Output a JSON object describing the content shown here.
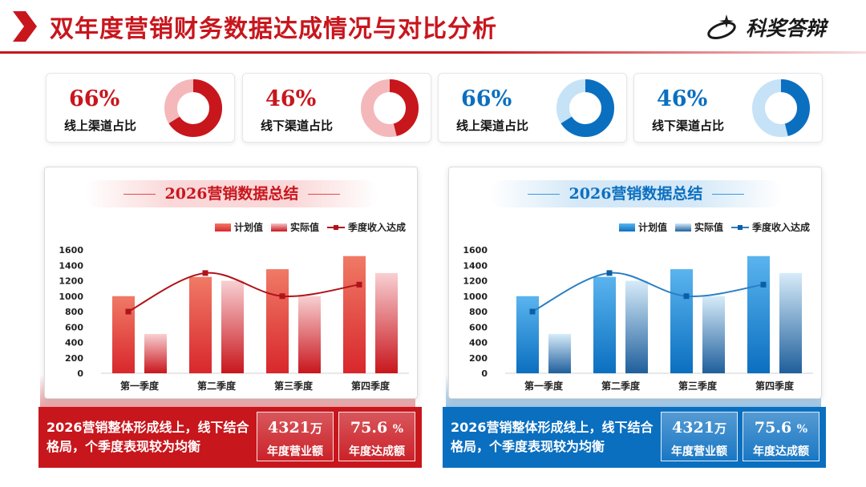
{
  "header": {
    "title": "双年度营销财务数据达成情况与对比分析",
    "logo_text": "科奖答辩",
    "accent_color": "#c8161d"
  },
  "kpis": [
    {
      "value": "66%",
      "label": "线上渠道占比",
      "percent": 66,
      "theme": "red"
    },
    {
      "value": "46%",
      "label": "线下渠道占比",
      "percent": 46,
      "theme": "red"
    },
    {
      "value": "66%",
      "label": "线上渠道占比",
      "percent": 66,
      "theme": "blue"
    },
    {
      "value": "46%",
      "label": "线下渠道占比",
      "percent": 46,
      "theme": "blue"
    }
  ],
  "panels": [
    {
      "title": "2026营销数据总结",
      "theme": "red",
      "summary": "2026营销整体形成线上，线下结合格局，个季度表现较为均衡",
      "stat1_value": "4321",
      "stat1_unit": "万",
      "stat1_label": "年度营业额",
      "stat2_value": "75.6",
      "stat2_unit": "%",
      "stat2_label": "年度达成额"
    },
    {
      "title": "2026营销数据总结",
      "theme": "blue",
      "summary": "2026营销整体形成线上，线下结合格局，个季度表现较为均衡",
      "stat1_value": "4321",
      "stat1_unit": "万",
      "stat1_label": "年度营业额",
      "stat2_value": "75.6",
      "stat2_unit": "%",
      "stat2_label": "年度达成额"
    }
  ],
  "colors": {
    "red_dark": "#c8161d",
    "red_mid": "#e8484c",
    "red_light": "#f4b8ba",
    "blue_dark": "#0b6fc0",
    "blue_mid": "#3b98dc",
    "blue_light": "#c6e2f6"
  },
  "chart_data": [
    {
      "type": "bar",
      "categories": [
        "第一季度",
        "第二季度",
        "第三季度",
        "第四季度"
      ],
      "series": [
        {
          "name": "计划值",
          "type": "bar",
          "values": [
            1000,
            1250,
            1350,
            1520
          ]
        },
        {
          "name": "实际值",
          "type": "bar",
          "values": [
            510,
            1200,
            1000,
            1300
          ]
        },
        {
          "name": "季度收入达成",
          "type": "line",
          "values": [
            800,
            1300,
            1000,
            1150
          ]
        }
      ],
      "yticks": [
        "0",
        "200",
        "400",
        "600",
        "800",
        "1000",
        "1200",
        "1400",
        "1600"
      ],
      "ylim": [
        0,
        1600
      ],
      "grid": false,
      "legend": "top-right",
      "theme": "red"
    },
    {
      "type": "bar",
      "categories": [
        "第一季度",
        "第二季度",
        "第三季度",
        "第四季度"
      ],
      "series": [
        {
          "name": "计划值",
          "type": "bar",
          "values": [
            1000,
            1250,
            1350,
            1520
          ]
        },
        {
          "name": "实际值",
          "type": "bar",
          "values": [
            510,
            1200,
            1000,
            1300
          ]
        },
        {
          "name": "季度收入达成",
          "type": "line",
          "values": [
            800,
            1300,
            1000,
            1150
          ]
        }
      ],
      "yticks": [
        "0",
        "200",
        "400",
        "600",
        "800",
        "1000",
        "1200",
        "1400",
        "1600"
      ],
      "ylim": [
        0,
        1600
      ],
      "grid": false,
      "legend": "top-right",
      "theme": "blue"
    }
  ]
}
